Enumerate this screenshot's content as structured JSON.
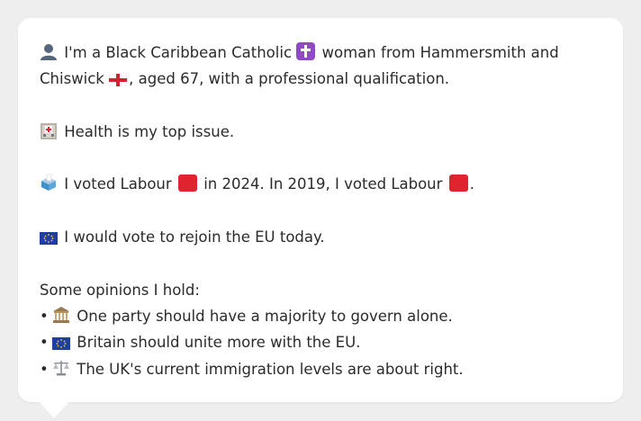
{
  "profile": {
    "intro_before_religion": "I'm a Black Caribbean Catholic",
    "intro_after_religion": "woman from Hammersmith and Chiswick",
    "intro_end": ", aged 67, with a professional qualification.",
    "top_issue": "Health is my top issue.",
    "vote_2024_prefix": "I voted Labour",
    "vote_2024_mid": "in 2024. In 2019, I voted Labour",
    "vote_end": ".",
    "eu_stance": "I would vote to rejoin the EU today.",
    "opinions_heading": "Some opinions I hold:",
    "opinions": [
      {
        "icon": "government-building-icon",
        "text": "One party should have a majority to govern alone."
      },
      {
        "icon": "eu-flag-icon",
        "text": "Britain should unite more with the EU."
      },
      {
        "icon": "scales-icon",
        "text": "The UK's current immigration levels are about right."
      }
    ],
    "bullet_char": "•"
  },
  "colors": {
    "labour_red": "#e0242f",
    "bubble_bg": "#ffffff",
    "page_bg": "#eeeeee",
    "text": "#2b2b2b"
  }
}
